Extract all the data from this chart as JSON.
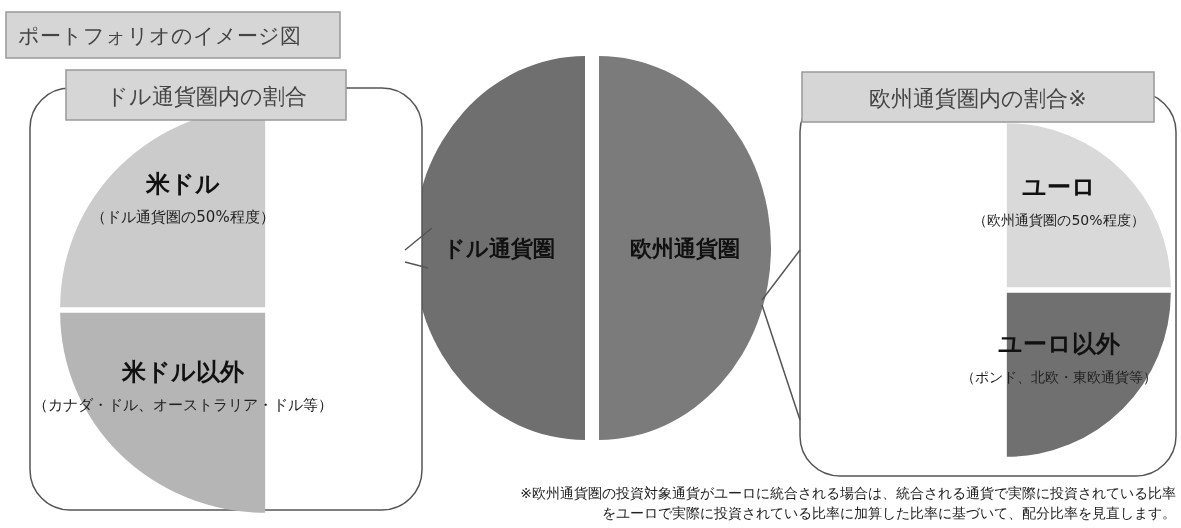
{
  "chart_data": [
    {
      "type": "pie",
      "title": "ポートフォリオのイメージ図",
      "categories": [
        "ドル通貨圏",
        "欧州通貨圏"
      ],
      "values": [
        50,
        50
      ],
      "colors": [
        "#6f6f6f",
        "#7b7b7b"
      ],
      "annotations": [
        "※欧州通貨圏の投資対象通貨がユーロに統合される場合は、統合される通貨で実際に投資されている比率をユーロで実際に投資されている比率に加算した比率に基づいて、配分比率を見直します。"
      ]
    },
    {
      "type": "pie",
      "title": "ドル通貨圏内の割合",
      "categories": [
        "米ドル",
        "米ドル以外"
      ],
      "values": [
        50,
        50
      ],
      "colors": [
        "#cbcbcb",
        "#b5b5b5"
      ],
      "annotations": [
        "（ドル通貨圏の50%程度）",
        "（カナダ・ドル、オーストラリア・ドル等）"
      ]
    },
    {
      "type": "pie",
      "title": "欧州通貨圏内の割合※",
      "categories": [
        "ユーロ",
        "ユーロ以外"
      ],
      "values": [
        50,
        50
      ],
      "colors": [
        "#d9d9d9",
        "#707070"
      ],
      "annotations": [
        "（欧州通貨圏の50%程度）",
        "（ポンド、北欧・東欧通貨等）"
      ]
    }
  ]
}
